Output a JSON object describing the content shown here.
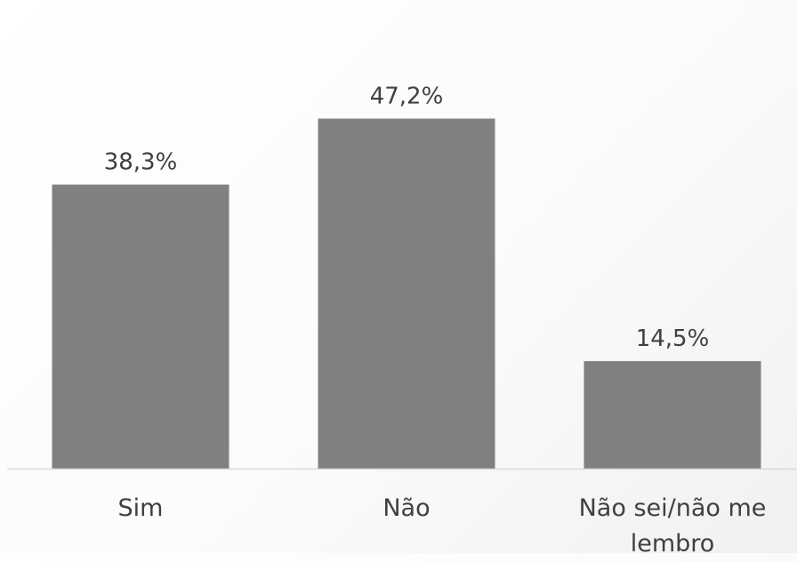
{
  "chart_data": {
    "type": "bar",
    "categories": [
      "Sim",
      "Não",
      "Não sei/não me lembro"
    ],
    "category_label_lines": [
      [
        "Sim"
      ],
      [
        "Não"
      ],
      [
        "Não sei/não me",
        "lembro"
      ]
    ],
    "values": [
      38.3,
      47.2,
      14.5
    ],
    "data_labels": [
      "38,3%",
      "47,2%",
      "14,5%"
    ],
    "unit": "%",
    "title": "",
    "xlabel": "",
    "ylabel": "",
    "ylim": [
      0,
      50
    ],
    "grid": false,
    "legend": "none",
    "colors": {
      "bar": "#808080",
      "label_text": "#404040",
      "axis_line": "#d9d9d9"
    }
  }
}
